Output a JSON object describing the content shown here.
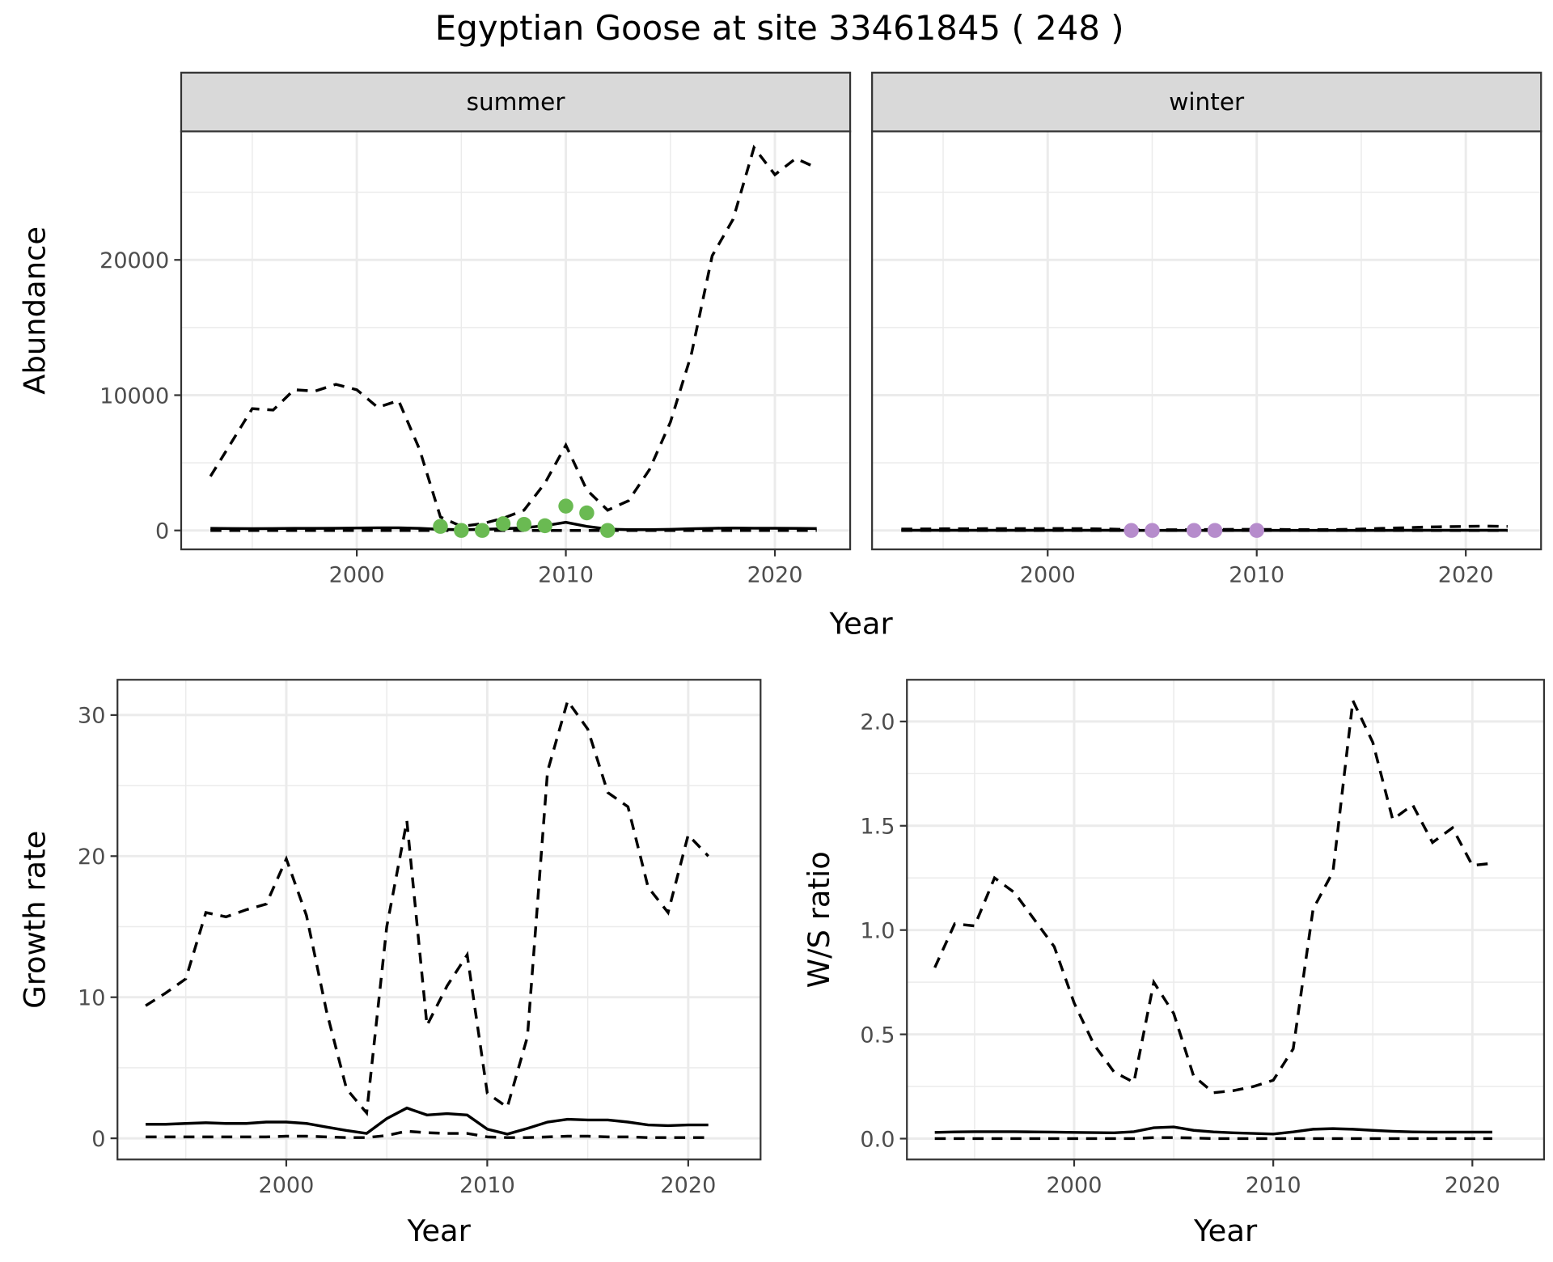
{
  "title": "Egyptian Goose at site 33461845 ( 248 )",
  "colors": {
    "summer_points": "#6aba52",
    "winter_points": "#b68ccc",
    "grid": "#ebebeb",
    "strip": "#d9d9d9"
  },
  "chart_data": [
    {
      "type": "line",
      "facet": "summer",
      "xlabel": "Year",
      "ylabel": "Abundance",
      "xlim": [
        1991.6,
        2023.6
      ],
      "ylim": [
        -1400,
        29500
      ],
      "xticks": [
        2000,
        2010,
        2020
      ],
      "yticks": [
        0,
        10000,
        20000
      ],
      "grid": true,
      "x": [
        1993,
        1994,
        1995,
        1996,
        1997,
        1998,
        1999,
        2000,
        2001,
        2002,
        2003,
        2004,
        2005,
        2006,
        2007,
        2008,
        2009,
        2010,
        2011,
        2012,
        2013,
        2014,
        2015,
        2016,
        2017,
        2018,
        2019,
        2020,
        2021,
        2022
      ],
      "series": [
        {
          "name": "upper",
          "style": "dashed",
          "values": [
            4000,
            6500,
            9000,
            8900,
            10400,
            10300,
            10800,
            10400,
            9100,
            9600,
            6000,
            1000,
            300,
            500,
            900,
            1500,
            3500,
            6300,
            3000,
            1500,
            2200,
            4500,
            8000,
            13000,
            20300,
            23000,
            28300,
            26300,
            27500,
            26800
          ]
        },
        {
          "name": "mean",
          "style": "solid",
          "values": [
            150,
            140,
            130,
            140,
            150,
            150,
            160,
            180,
            200,
            200,
            150,
            80,
            60,
            80,
            120,
            200,
            350,
            600,
            300,
            100,
            60,
            60,
            80,
            120,
            160,
            180,
            170,
            160,
            150,
            140
          ]
        },
        {
          "name": "lower",
          "style": "dashed",
          "values": [
            0,
            0,
            0,
            0,
            0,
            0,
            0,
            0,
            0,
            0,
            0,
            0,
            0,
            0,
            0,
            0,
            0,
            0,
            0,
            0,
            0,
            0,
            0,
            0,
            0,
            0,
            0,
            0,
            0,
            0
          ]
        }
      ],
      "points": {
        "x": [
          2004,
          2005,
          2006,
          2007,
          2008,
          2009,
          2010,
          2011,
          2012
        ],
        "values": [
          300,
          0,
          0,
          500,
          450,
          350,
          1800,
          1300,
          0
        ]
      }
    },
    {
      "type": "line",
      "facet": "winter",
      "xlabel": "Year",
      "ylabel": "Abundance",
      "xlim": [
        1991.6,
        2023.6
      ],
      "ylim": [
        -1400,
        29500
      ],
      "xticks": [
        2000,
        2010,
        2020
      ],
      "yticks": [
        0,
        10000,
        20000
      ],
      "grid": true,
      "x": [
        1993,
        1994,
        1995,
        1996,
        1997,
        1998,
        1999,
        2000,
        2001,
        2002,
        2003,
        2004,
        2005,
        2006,
        2007,
        2008,
        2009,
        2010,
        2011,
        2012,
        2013,
        2014,
        2015,
        2016,
        2017,
        2018,
        2019,
        2020,
        2021,
        2022
      ],
      "series": [
        {
          "name": "upper",
          "style": "dashed",
          "values": [
            100,
            110,
            120,
            120,
            130,
            130,
            130,
            140,
            140,
            130,
            100,
            60,
            50,
            50,
            60,
            70,
            80,
            80,
            70,
            60,
            60,
            70,
            100,
            150,
            200,
            250,
            280,
            300,
            320,
            300
          ]
        },
        {
          "name": "mean",
          "style": "solid",
          "values": [
            10,
            10,
            10,
            10,
            10,
            10,
            10,
            10,
            10,
            10,
            10,
            5,
            5,
            5,
            5,
            5,
            5,
            5,
            5,
            5,
            5,
            5,
            5,
            5,
            10,
            10,
            10,
            10,
            10,
            10
          ]
        },
        {
          "name": "lower",
          "style": "dashed",
          "values": [
            0,
            0,
            0,
            0,
            0,
            0,
            0,
            0,
            0,
            0,
            0,
            0,
            0,
            0,
            0,
            0,
            0,
            0,
            0,
            0,
            0,
            0,
            0,
            0,
            0,
            0,
            0,
            0,
            0,
            0
          ]
        }
      ],
      "points": {
        "x": [
          2004,
          2005,
          2007,
          2008,
          2010
        ],
        "values": [
          0,
          0,
          0,
          0,
          0
        ]
      }
    },
    {
      "type": "line",
      "facet": "growth",
      "xlabel": "Year",
      "ylabel": "Growth rate",
      "xlim": [
        1991.6,
        2023.6
      ],
      "ylim": [
        -1.5,
        32.5
      ],
      "xticks": [
        2000,
        2010,
        2020
      ],
      "yticks": [
        0,
        10,
        20,
        30
      ],
      "grid": true,
      "x": [
        1993,
        1994,
        1995,
        1996,
        1997,
        1998,
        1999,
        2000,
        2001,
        2002,
        2003,
        2004,
        2005,
        2006,
        2007,
        2008,
        2009,
        2010,
        2011,
        2012,
        2013,
        2014,
        2015,
        2016,
        2017,
        2018,
        2019,
        2020,
        2021
      ],
      "series": [
        {
          "name": "upper",
          "style": "dashed",
          "values": [
            9.4,
            10.3,
            11.3,
            16,
            15.7,
            16.2,
            16.6,
            19.8,
            15.8,
            9,
            3.5,
            1.8,
            15,
            22.5,
            8,
            10.8,
            13,
            3.2,
            2.2,
            7.2,
            26,
            31,
            29,
            24.5,
            23.5,
            17.8,
            16,
            21.5,
            20
          ]
        },
        {
          "name": "mean",
          "style": "solid",
          "values": [
            1,
            1,
            1.05,
            1.1,
            1.05,
            1.05,
            1.15,
            1.15,
            1.05,
            0.8,
            0.55,
            0.35,
            1.4,
            2.15,
            1.65,
            1.75,
            1.65,
            0.65,
            0.3,
            0.7,
            1.15,
            1.35,
            1.3,
            1.3,
            1.15,
            0.95,
            0.9,
            0.95,
            0.95
          ]
        },
        {
          "name": "lower",
          "style": "dashed",
          "values": [
            0.1,
            0.1,
            0.1,
            0.1,
            0.1,
            0.1,
            0.1,
            0.15,
            0.15,
            0.1,
            0.05,
            0.05,
            0.2,
            0.5,
            0.4,
            0.35,
            0.35,
            0.1,
            0.05,
            0.05,
            0.1,
            0.15,
            0.15,
            0.1,
            0.1,
            0.05,
            0.05,
            0.05,
            0.05
          ]
        }
      ]
    },
    {
      "type": "line",
      "facet": "ratio",
      "xlabel": "Year",
      "ylabel": "W/S ratio",
      "xlim": [
        1991.6,
        2023.6
      ],
      "ylim": [
        -0.1,
        2.2
      ],
      "xticks": [
        2000,
        2010,
        2020
      ],
      "yticks": [
        0.0,
        0.5,
        1.0,
        1.5,
        2.0
      ],
      "ytick_labels": [
        "0.0",
        "0.5",
        "1.0",
        "1.5",
        "2.0"
      ],
      "grid": true,
      "x": [
        1993,
        1994,
        1995,
        1996,
        1997,
        1998,
        1999,
        2000,
        2001,
        2002,
        2003,
        2004,
        2005,
        2006,
        2007,
        2008,
        2009,
        2010,
        2011,
        2012,
        2013,
        2014,
        2015,
        2016,
        2017,
        2018,
        2019,
        2020,
        2021
      ],
      "series": [
        {
          "name": "upper",
          "style": "dashed",
          "values": [
            0.82,
            1.03,
            1.02,
            1.25,
            1.18,
            1.05,
            0.92,
            0.65,
            0.45,
            0.32,
            0.27,
            0.75,
            0.6,
            0.3,
            0.22,
            0.23,
            0.25,
            0.28,
            0.43,
            1.1,
            1.28,
            2.1,
            1.9,
            1.53,
            1.6,
            1.42,
            1.49,
            1.31,
            1.32
          ]
        },
        {
          "name": "mean",
          "style": "solid",
          "values": [
            0.03,
            0.032,
            0.033,
            0.033,
            0.033,
            0.032,
            0.031,
            0.03,
            0.029,
            0.028,
            0.033,
            0.052,
            0.056,
            0.04,
            0.032,
            0.028,
            0.025,
            0.022,
            0.032,
            0.045,
            0.048,
            0.045,
            0.04,
            0.035,
            0.032,
            0.031,
            0.031,
            0.031,
            0.031
          ]
        },
        {
          "name": "lower",
          "style": "dashed",
          "values": [
            0,
            0,
            0,
            0,
            0,
            0,
            0,
            0,
            0,
            0,
            0,
            0.005,
            0.005,
            0.003,
            0,
            0,
            0,
            0,
            0,
            0,
            0,
            0,
            0,
            0,
            0,
            0,
            0,
            0,
            0
          ]
        }
      ]
    }
  ]
}
